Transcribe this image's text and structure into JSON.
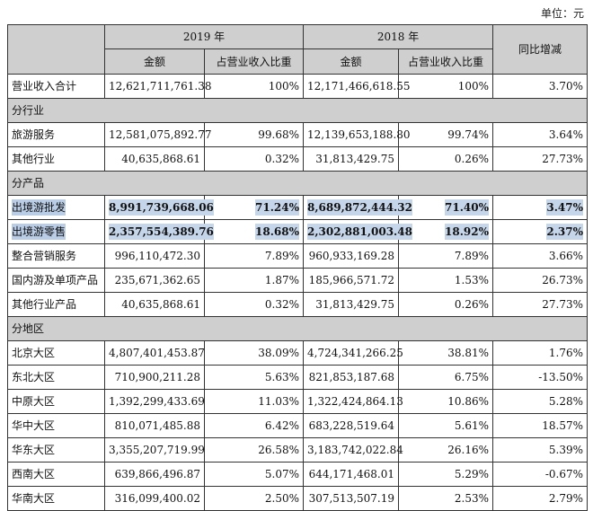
{
  "unit_label": "单位：元",
  "headers": {
    "year_2019": "2019 年",
    "year_2018": "2018 年",
    "yoy": "同比增减",
    "amount": "金额",
    "share": "占营业收入比重"
  },
  "total": {
    "label": "营业收入合计",
    "a2019": "12,621,711,761.38",
    "s2019": "100%",
    "a2018": "12,171,466,618.55",
    "s2018": "100%",
    "yoy": "3.70%"
  },
  "sections": [
    {
      "title": "分行业",
      "rows": [
        {
          "label": "旅游服务",
          "a2019": "12,581,075,892.77",
          "s2019": "99.68%",
          "a2018": "12,139,653,188.80",
          "s2018": "99.74%",
          "yoy": "3.64%",
          "highlight": false
        },
        {
          "label": "其他行业",
          "a2019": "40,635,868.61",
          "s2019": "0.32%",
          "a2018": "31,813,429.75",
          "s2018": "0.26%",
          "yoy": "27.73%",
          "highlight": false
        }
      ]
    },
    {
      "title": "分产品",
      "rows": [
        {
          "label": "出境游批发",
          "a2019": "8,991,739,668.06",
          "s2019": "71.24%",
          "a2018": "8,689,872,444.32",
          "s2018": "71.40%",
          "yoy": "3.47%",
          "highlight": true
        },
        {
          "label": "出境游零售",
          "a2019": "2,357,554,389.76",
          "s2019": "18.68%",
          "a2018": "2,302,881,003.48",
          "s2018": "18.92%",
          "yoy": "2.37%",
          "highlight": true
        },
        {
          "label": "整合营销服务",
          "a2019": "996,110,472.30",
          "s2019": "7.89%",
          "a2018": "960,933,169.28",
          "s2018": "7.89%",
          "yoy": "3.66%",
          "highlight": false
        },
        {
          "label": "国内游及单项产品",
          "a2019": "235,671,362.65",
          "s2019": "1.87%",
          "a2018": "185,966,571.72",
          "s2018": "1.53%",
          "yoy": "26.73%",
          "highlight": false
        },
        {
          "label": "其他行业产品",
          "a2019": "40,635,868.61",
          "s2019": "0.32%",
          "a2018": "31,813,429.75",
          "s2018": "0.26%",
          "yoy": "27.73%",
          "highlight": false
        }
      ]
    },
    {
      "title": "分地区",
      "rows": [
        {
          "label": "北京大区",
          "a2019": "4,807,401,453.87",
          "s2019": "38.09%",
          "a2018": "4,724,341,266.25",
          "s2018": "38.81%",
          "yoy": "1.76%",
          "highlight": false
        },
        {
          "label": "东北大区",
          "a2019": "710,900,211.28",
          "s2019": "5.63%",
          "a2018": "821,853,187.68",
          "s2018": "6.75%",
          "yoy": "-13.50%",
          "highlight": false
        },
        {
          "label": "中原大区",
          "a2019": "1,392,299,433.69",
          "s2019": "11.03%",
          "a2018": "1,322,424,864.13",
          "s2018": "10.86%",
          "yoy": "5.28%",
          "highlight": false
        },
        {
          "label": "华中大区",
          "a2019": "810,071,485.88",
          "s2019": "6.42%",
          "a2018": "683,228,519.64",
          "s2018": "5.61%",
          "yoy": "18.57%",
          "highlight": false
        },
        {
          "label": "华东大区",
          "a2019": "3,355,207,719.99",
          "s2019": "26.58%",
          "a2018": "3,183,742,022.84",
          "s2018": "26.16%",
          "yoy": "5.39%",
          "highlight": false
        },
        {
          "label": "西南大区",
          "a2019": "639,866,496.87",
          "s2019": "5.07%",
          "a2018": "644,171,468.01",
          "s2018": "5.29%",
          "yoy": "-0.67%",
          "highlight": false
        },
        {
          "label": "华南大区",
          "a2019": "316,099,400.02",
          "s2019": "2.50%",
          "a2018": "307,513,507.19",
          "s2018": "2.53%",
          "yoy": "2.79%",
          "highlight": false
        }
      ]
    }
  ]
}
